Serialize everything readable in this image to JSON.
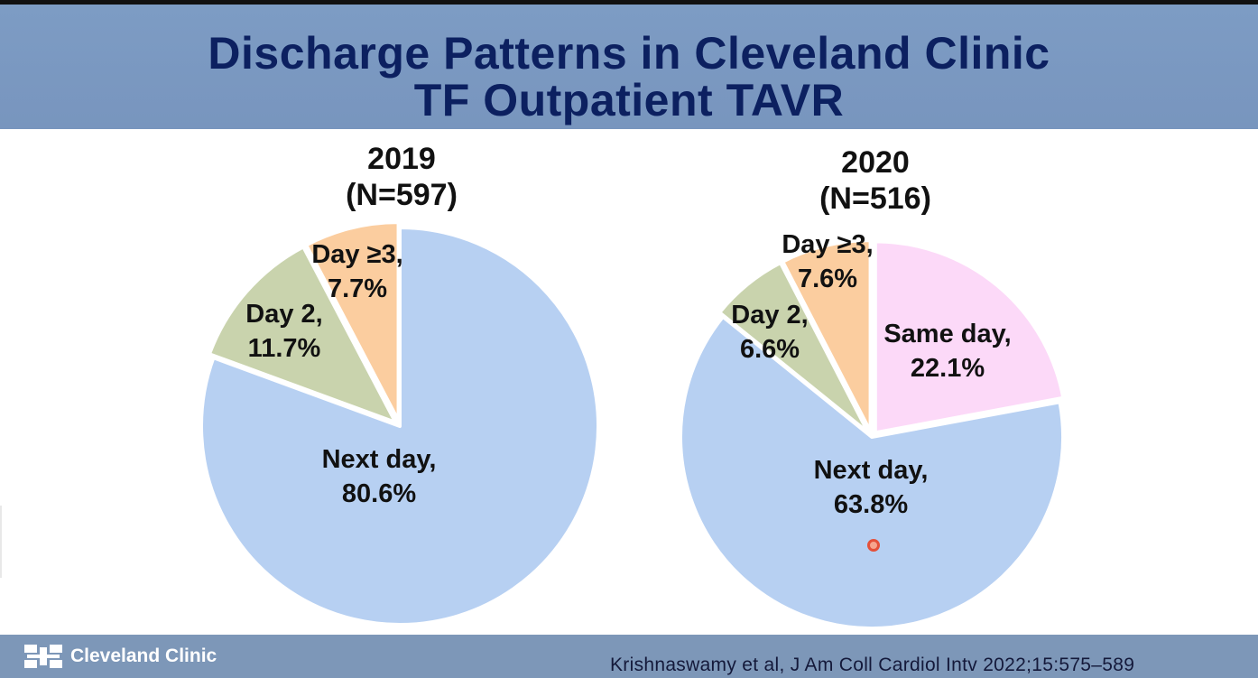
{
  "title": {
    "line1": "Discharge Patterns in Cleveland Clinic",
    "line2": "TF Outpatient TAVR"
  },
  "colors": {
    "next_day": "#b7d0f2",
    "day2": "#c9d3ad",
    "day3plus": "#fbcd9f",
    "same_day": "#fcd9f8",
    "title_text": "#0c2060",
    "title_bar": "#7d9cc4",
    "footer_bar": "#7d97b8"
  },
  "chart_data": [
    {
      "type": "pie",
      "title": "2019",
      "subtitle": "(N=597)",
      "slices": [
        {
          "label_lines": [
            "Next day,",
            "80.6%"
          ],
          "name": "Next day",
          "value": 80.6,
          "color_key": "next_day"
        },
        {
          "label_lines": [
            "Day 2,",
            "11.7%"
          ],
          "name": "Day 2",
          "value": 11.7,
          "color_key": "day2"
        },
        {
          "label_lines": [
            "Day ≥3,",
            "7.7%"
          ],
          "name": "Day ≥3",
          "value": 7.7,
          "color_key": "day3plus"
        }
      ]
    },
    {
      "type": "pie",
      "title": "2020",
      "subtitle": "(N=516)",
      "slices": [
        {
          "label_lines": [
            "Same day,",
            "22.1%"
          ],
          "name": "Same day",
          "value": 22.1,
          "color_key": "same_day"
        },
        {
          "label_lines": [
            "Next day,",
            "63.8%"
          ],
          "name": "Next day",
          "value": 63.8,
          "color_key": "next_day"
        },
        {
          "label_lines": [
            "Day 2,",
            "6.6%"
          ],
          "name": "Day 2",
          "value": 6.6,
          "color_key": "day2"
        },
        {
          "label_lines": [
            "Day ≥3,",
            "7.6%"
          ],
          "name": "Day ≥3",
          "value": 7.6,
          "color_key": "day3plus"
        }
      ]
    }
  ],
  "footer": {
    "logo_text": "Cleveland Clinic",
    "citation": "Krishnaswamy et al, J Am Coll Cardiol Intv 2022;15:575–589"
  }
}
